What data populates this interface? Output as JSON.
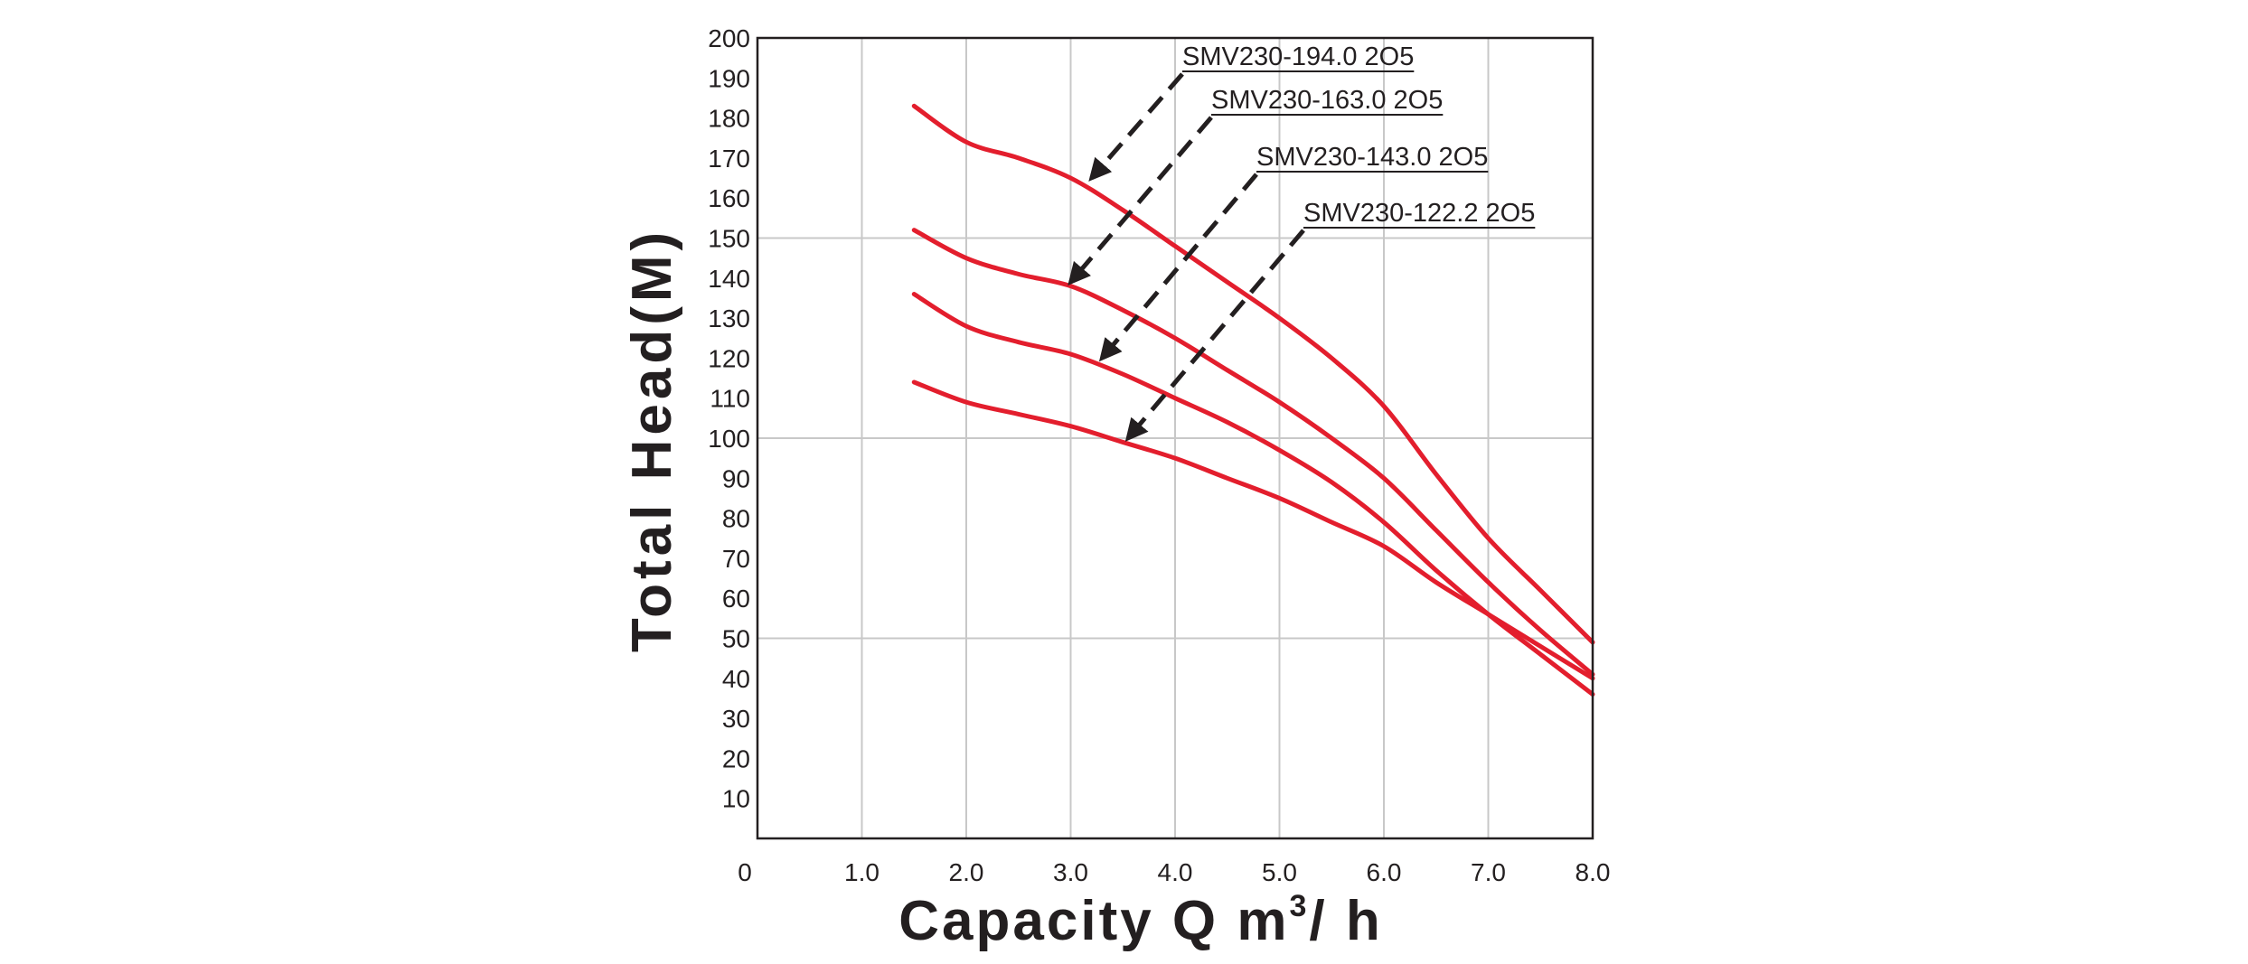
{
  "chart_data": {
    "type": "line",
    "title": "",
    "xlabel_main": "Capacity Q m",
    "xlabel_sup": "3",
    "xlabel_tail": "/ h",
    "ylabel": "Total Head(M)",
    "xlim": [
      0,
      8
    ],
    "ylim": [
      0,
      200
    ],
    "x_ticks": [
      "0",
      "1.0",
      "2.0",
      "3.0",
      "4.0",
      "5.0",
      "6.0",
      "7.0",
      "8.0"
    ],
    "y_ticks": [
      "10",
      "20",
      "30",
      "40",
      "50",
      "60",
      "70",
      "80",
      "90",
      "100",
      "110",
      "120",
      "130",
      "140",
      "150",
      "160",
      "170",
      "180",
      "190",
      "200"
    ],
    "grid": true,
    "colors": {
      "curve": "#e31e2d",
      "grid": "#c8c8c8",
      "axis": "#231f20",
      "arrow": "#231f20"
    },
    "series": [
      {
        "name": "SMV230-194.0 2O5",
        "points": [
          [
            1.5,
            183
          ],
          [
            2.0,
            174
          ],
          [
            2.5,
            170
          ],
          [
            3.0,
            165
          ],
          [
            3.5,
            157
          ],
          [
            4.0,
            148
          ],
          [
            4.5,
            139
          ],
          [
            5.0,
            130
          ],
          [
            5.5,
            120
          ],
          [
            6.0,
            108
          ],
          [
            6.5,
            91
          ],
          [
            7.0,
            75
          ],
          [
            7.5,
            62
          ],
          [
            8.0,
            49
          ]
        ],
        "arrow_target": [
          3.2,
          165
        ]
      },
      {
        "name": "SMV230-163.0 2O5",
        "points": [
          [
            1.5,
            152
          ],
          [
            2.0,
            145
          ],
          [
            2.5,
            141
          ],
          [
            3.0,
            138
          ],
          [
            3.5,
            132
          ],
          [
            4.0,
            125
          ],
          [
            4.5,
            117
          ],
          [
            5.0,
            109
          ],
          [
            5.5,
            100
          ],
          [
            6.0,
            90
          ],
          [
            6.5,
            77
          ],
          [
            7.0,
            64
          ],
          [
            7.5,
            52
          ],
          [
            8.0,
            41
          ]
        ],
        "arrow_target": [
          3.0,
          139
        ]
      },
      {
        "name": "SMV230-143.0 2O5",
        "points": [
          [
            1.5,
            136
          ],
          [
            2.0,
            128
          ],
          [
            2.5,
            124
          ],
          [
            3.0,
            121
          ],
          [
            3.5,
            116
          ],
          [
            4.0,
            110
          ],
          [
            4.5,
            104
          ],
          [
            5.0,
            97
          ],
          [
            5.5,
            89
          ],
          [
            6.0,
            79
          ],
          [
            6.5,
            67
          ],
          [
            7.0,
            56
          ],
          [
            7.5,
            46
          ],
          [
            8.0,
            36
          ]
        ],
        "arrow_target": [
          3.3,
          120
        ]
      },
      {
        "name": "SMV230-122.2 2O5",
        "points": [
          [
            1.5,
            114
          ],
          [
            2.0,
            109
          ],
          [
            2.5,
            106
          ],
          [
            3.0,
            103
          ],
          [
            3.5,
            99
          ],
          [
            4.0,
            95
          ],
          [
            4.5,
            90
          ],
          [
            5.0,
            85
          ],
          [
            5.5,
            79
          ],
          [
            6.0,
            73
          ],
          [
            6.5,
            64
          ],
          [
            7.0,
            56
          ],
          [
            7.5,
            48
          ],
          [
            8.0,
            40
          ]
        ],
        "arrow_target": [
          3.55,
          100
        ]
      }
    ]
  }
}
